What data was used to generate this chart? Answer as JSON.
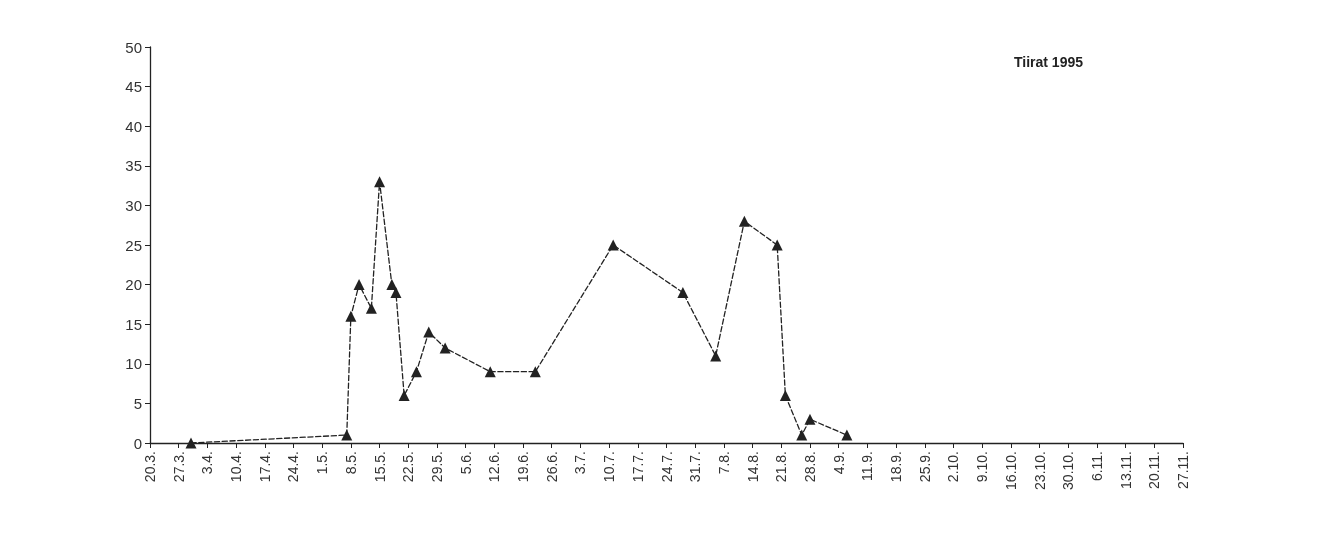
{
  "chart_data": {
    "type": "line",
    "title": "Tiirat 1995",
    "x": [
      "--03-30",
      "--05-07",
      "--05-08",
      "--05-10",
      "--05-13",
      "--05-15",
      "--05-18",
      "--05-19",
      "--05-21",
      "--05-24",
      "--05-27",
      "--05-31",
      "--06-11",
      "--06-22",
      "--07-11",
      "--07-28",
      "--08-05",
      "--08-12",
      "--08-20",
      "--08-22",
      "--08-26",
      "--08-28",
      "--09-06"
    ],
    "series": [
      {
        "color": "#222222",
        "values": [
          0,
          1,
          16,
          20,
          17,
          33,
          20,
          19,
          6,
          9,
          14,
          12,
          9,
          9,
          25,
          19,
          11,
          28,
          25,
          6,
          1,
          3,
          1
        ]
      }
    ],
    "marker": "triangle",
    "line_style": "dashed",
    "grid": false,
    "ylim": [
      0,
      50
    ],
    "yticks": [
      0,
      5,
      10,
      15,
      20,
      25,
      30,
      35,
      40,
      45,
      50
    ],
    "xlim": [
      "--03-20",
      "--11-27"
    ],
    "xticks": [
      {
        "value": "--03-20",
        "label": "20.3."
      },
      {
        "value": "--03-27",
        "label": "27.3."
      },
      {
        "value": "--04-03",
        "label": "3.4."
      },
      {
        "value": "--04-10",
        "label": "10.4."
      },
      {
        "value": "--04-17",
        "label": "17.4."
      },
      {
        "value": "--04-24",
        "label": "24.4."
      },
      {
        "value": "--05-01",
        "label": "1.5."
      },
      {
        "value": "--05-08",
        "label": "8.5."
      },
      {
        "value": "--05-15",
        "label": "15.5."
      },
      {
        "value": "--05-22",
        "label": "22.5."
      },
      {
        "value": "--05-29",
        "label": "29.5."
      },
      {
        "value": "--06-05",
        "label": "5.6."
      },
      {
        "value": "--06-12",
        "label": "12.6."
      },
      {
        "value": "--06-19",
        "label": "19.6."
      },
      {
        "value": "--06-26",
        "label": "26.6."
      },
      {
        "value": "--07-03",
        "label": "3.7."
      },
      {
        "value": "--07-10",
        "label": "10.7."
      },
      {
        "value": "--07-17",
        "label": "17.7."
      },
      {
        "value": "--07-24",
        "label": "24.7."
      },
      {
        "value": "--07-31",
        "label": "31.7."
      },
      {
        "value": "--08-07",
        "label": "7.8."
      },
      {
        "value": "--08-14",
        "label": "14.8."
      },
      {
        "value": "--08-21",
        "label": "21.8."
      },
      {
        "value": "--08-28",
        "label": "28.8."
      },
      {
        "value": "--09-04",
        "label": "4.9."
      },
      {
        "value": "--09-11",
        "label": "11.9."
      },
      {
        "value": "--09-18",
        "label": "18.9."
      },
      {
        "value": "--09-25",
        "label": "25.9."
      },
      {
        "value": "--10-02",
        "label": "2.10."
      },
      {
        "value": "--10-09",
        "label": "9.10."
      },
      {
        "value": "--10-16",
        "label": "16.10."
      },
      {
        "value": "--10-23",
        "label": "23.10."
      },
      {
        "value": "--10-30",
        "label": "30.10."
      },
      {
        "value": "--11-06",
        "label": "6.11."
      },
      {
        "value": "--11-13",
        "label": "13.11."
      },
      {
        "value": "--11-20",
        "label": "20.11."
      },
      {
        "value": "--11-27",
        "label": "27.11."
      }
    ]
  }
}
